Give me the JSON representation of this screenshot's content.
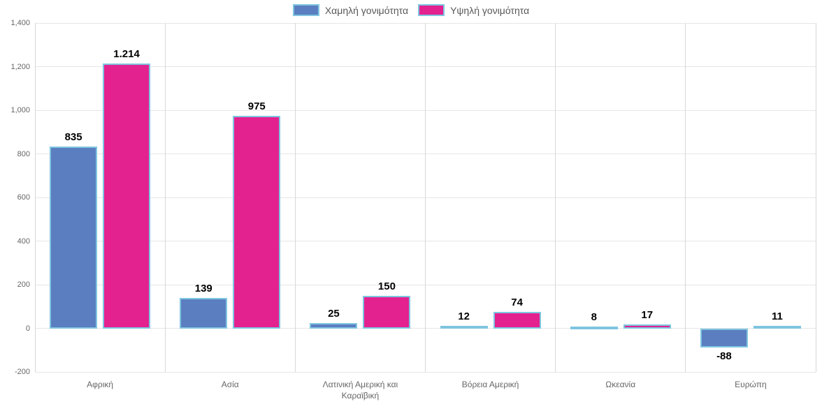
{
  "chart_data": {
    "type": "bar",
    "title": "",
    "xlabel": "",
    "ylabel": "",
    "categories": [
      "Αφρική",
      "Ασία",
      "Λατινική Αμερική και Καραϊβική",
      "Βόρεια Αμερική",
      "Ωκεανία",
      "Ευρώπη"
    ],
    "series": [
      {
        "name": "Χαμηλή γονιμότητα",
        "color": "#5b7ec0",
        "values": [
          835,
          139,
          25,
          12,
          8,
          -88
        ],
        "value_labels": [
          "835",
          "139",
          "25",
          "12",
          "8",
          "-88"
        ]
      },
      {
        "name": "Υψηλή γονιμότητα",
        "color": "#e3218f",
        "values": [
          1214,
          975,
          150,
          74,
          17,
          11
        ],
        "value_labels": [
          "1.214",
          "975",
          "150",
          "74",
          "17",
          "11"
        ]
      }
    ],
    "bar_border_color": "#7fc5e0",
    "ylim": [
      -200,
      1400
    ],
    "yticks": [
      1400,
      1200,
      1000,
      800,
      600,
      400,
      200,
      0,
      -200
    ],
    "ytick_labels": [
      "1,400",
      "1,200",
      "1,000",
      "800",
      "600",
      "400",
      "200",
      "0",
      "-200"
    ],
    "grid": true,
    "legend_position": "top-center",
    "colors": {
      "grid_horizontal": "#e6e6e6",
      "grid_vertical": "#d8d8d8",
      "axis_text": "#666666",
      "legend_text": "#58585a",
      "value_label_text": "#000000",
      "background": "#ffffff"
    }
  }
}
